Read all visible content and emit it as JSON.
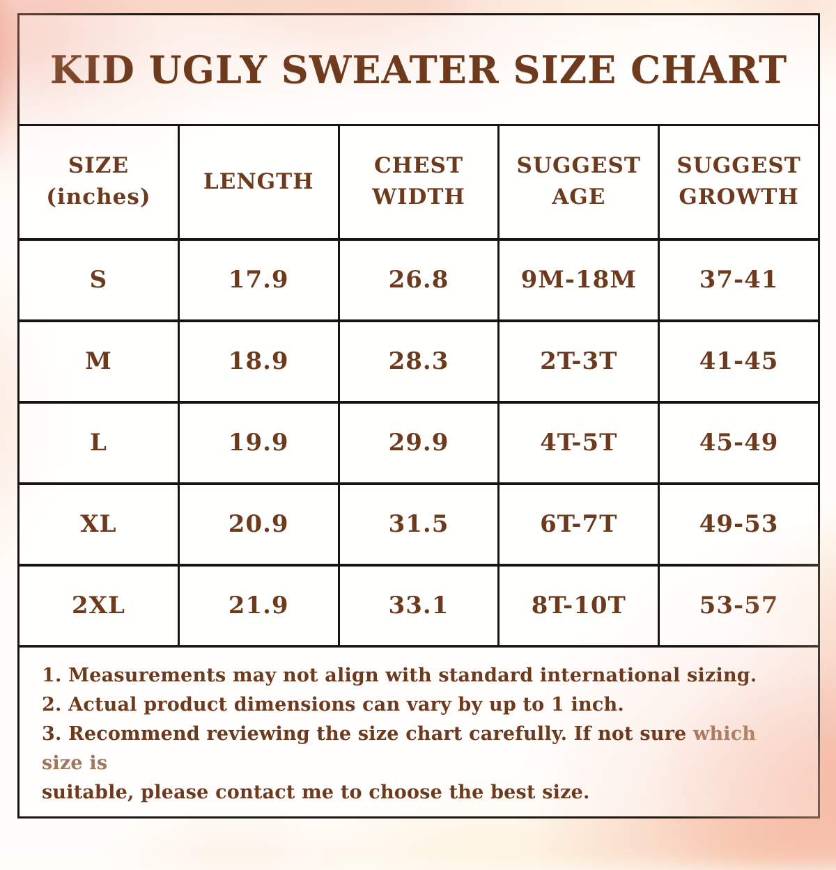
{
  "title": "KID UGLY SWEATER SIZE CHART",
  "table": {
    "headers": [
      "SIZE\n(inches)",
      "LENGTH",
      "CHEST\nWIDTH",
      "SUGGEST\nAGE",
      "SUGGEST\nGROWTH"
    ],
    "rows": [
      [
        "S",
        "17.9",
        "26.8",
        "9M-18M",
        "37-41"
      ],
      [
        "M",
        "18.9",
        "28.3",
        "2T-3T",
        "41-45"
      ],
      [
        "L",
        "19.9",
        "29.9",
        "4T-5T",
        "45-49"
      ],
      [
        "XL",
        "20.9",
        "31.5",
        "6T-7T",
        "49-53"
      ],
      [
        "2XL",
        "21.9",
        "33.1",
        "8T-10T",
        "53-57"
      ]
    ]
  },
  "notes": [
    {
      "segments": [
        {
          "text": "1. Measurements may not align with standard international sizing.",
          "faded": false
        }
      ]
    },
    {
      "segments": [
        {
          "text": "2. Actual product dimensions can vary by up to 1 inch.",
          "faded": false
        }
      ]
    },
    {
      "segments": [
        {
          "text": "3. Recommend reviewing the size chart carefully. If not sure ",
          "faded": false
        },
        {
          "text": "which size is",
          "faded": true,
          "br": true
        },
        {
          "text": "suitable, please contact me to choose the best size.",
          "faded": false
        }
      ]
    }
  ],
  "colors": {
    "text_brown": "#6e3a1d",
    "faded_brown": "#a1765a",
    "border": "#171513",
    "watercolor_pink": "#f0a08c",
    "watercolor_peach": "#f6c6aa",
    "watercolor_cream": "#fbe1b4"
  },
  "chart_data": {
    "type": "table",
    "title": "KID UGLY SWEATER SIZE CHART",
    "columns": [
      "SIZE (inches)",
      "LENGTH",
      "CHEST WIDTH",
      "SUGGEST AGE",
      "SUGGEST GROWTH"
    ],
    "rows": [
      [
        "S",
        17.9,
        26.8,
        "9M-18M",
        "37-41"
      ],
      [
        "M",
        18.9,
        28.3,
        "2T-3T",
        "41-45"
      ],
      [
        "L",
        19.9,
        29.9,
        "4T-5T",
        "45-49"
      ],
      [
        "XL",
        20.9,
        31.5,
        "6T-7T",
        "49-53"
      ],
      [
        "2XL",
        21.9,
        33.1,
        "8T-10T",
        "53-57"
      ]
    ]
  }
}
